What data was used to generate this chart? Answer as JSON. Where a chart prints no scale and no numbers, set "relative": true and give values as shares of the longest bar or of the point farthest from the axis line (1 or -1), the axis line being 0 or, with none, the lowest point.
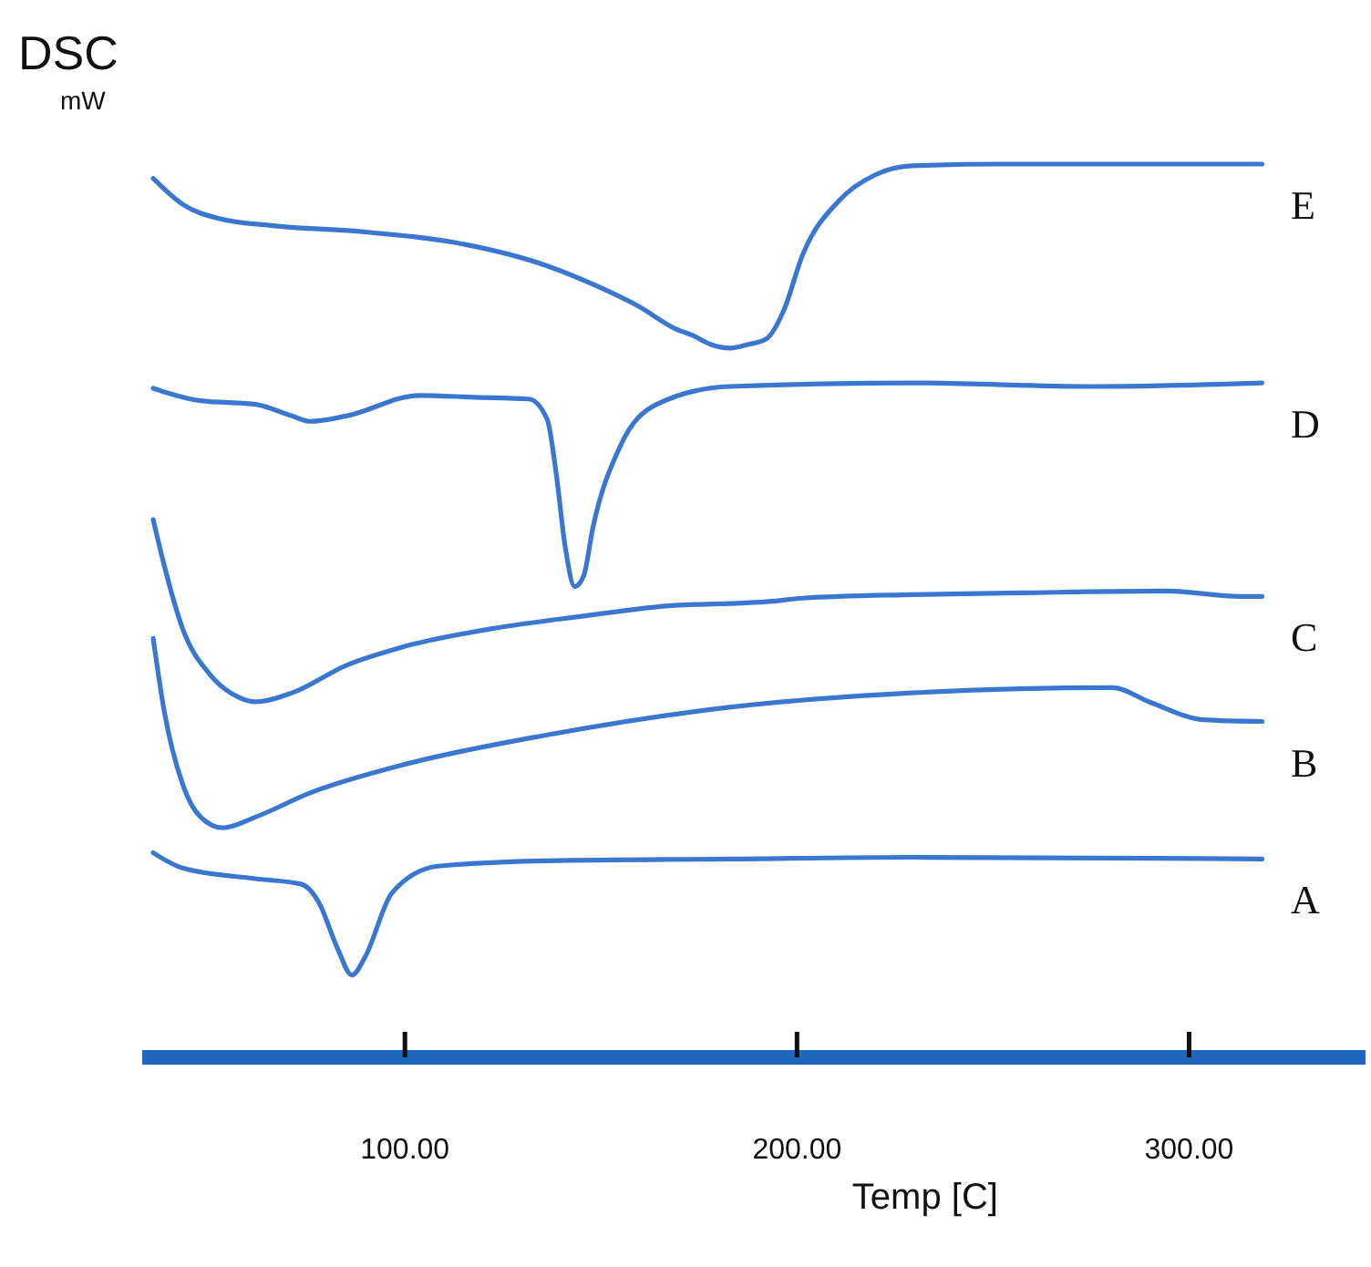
{
  "chart_data": {
    "type": "line",
    "relative": true,
    "title": "DSC",
    "ylabel": "mW",
    "xlabel": "Temp [C]",
    "xlim": [
      33,
      345
    ],
    "xticks": [
      {
        "value": 100,
        "label": "100.00"
      },
      {
        "value": 200,
        "label": "200.00"
      },
      {
        "value": 300,
        "label": "300.00"
      }
    ],
    "marker": "none",
    "line_style": "solid",
    "series": [
      {
        "name": "E",
        "color": "#3a78d0",
        "x": [
          35.8,
          43.3,
          52.6,
          66.5,
          89.8,
          113,
          136.3,
          150.2,
          159.5,
          168.8,
          173.5,
          178.1,
          182.8,
          187.4,
          192.1,
          196.7,
          201.4,
          210.7,
          220,
          229.3,
          252.6,
          275.8,
          318.6
        ],
        "values": [
          0.984,
          0.955,
          0.939,
          0.931,
          0.924,
          0.912,
          0.886,
          0.861,
          0.841,
          0.816,
          0.808,
          0.798,
          0.794,
          0.798,
          0.804,
          0.837,
          0.898,
          0.959,
          0.988,
          0.998,
          1,
          1,
          1
        ]
      },
      {
        "name": "D",
        "color": "#3a78d0",
        "x": [
          35.8,
          38.6,
          47.9,
          61.9,
          71.2,
          75.8,
          85.1,
          103.7,
          117.7,
          131.6,
          136.3,
          138.6,
          140.9,
          143.3,
          145.6,
          147.9,
          154.9,
          164.2,
          182.8,
          229.3,
          275.8,
          318.6
        ],
        "values": [
          0.749,
          0.745,
          0.735,
          0.731,
          0.718,
          0.712,
          0.718,
          0.741,
          0.739,
          0.737,
          0.714,
          0.653,
          0.571,
          0.527,
          0.539,
          0.592,
          0.684,
          0.731,
          0.751,
          0.755,
          0.751,
          0.755
        ]
      },
      {
        "name": "C",
        "color": "#3a78d0",
        "x": [
          35.8,
          38.6,
          43.3,
          50.2,
          57.2,
          61.9,
          71.2,
          85.1,
          99.1,
          122.3,
          145.6,
          168.8,
          182.8,
          192.1,
          201.4,
          229.3,
          257.2,
          294.4,
          313,
          318.6
        ],
        "values": [
          0.602,
          0.551,
          0.48,
          0.429,
          0.404,
          0.398,
          0.408,
          0.439,
          0.459,
          0.48,
          0.494,
          0.506,
          0.508,
          0.51,
          0.514,
          0.518,
          0.52,
          0.522,
          0.516,
          0.516
        ]
      },
      {
        "name": "B",
        "color": "#3a78d0",
        "x": [
          35.8,
          38.6,
          43.3,
          47.9,
          53.5,
          61.9,
          75.8,
          99.1,
          136.3,
          182.8,
          229.3,
          280.5,
          289.8,
          303.7,
          318.6
        ],
        "values": [
          0.469,
          0.388,
          0.306,
          0.269,
          0.257,
          0.269,
          0.296,
          0.327,
          0.361,
          0.392,
          0.408,
          0.414,
          0.398,
          0.378,
          0.376
        ]
      },
      {
        "name": "A",
        "color": "#3a78d0",
        "x": [
          35.8,
          43.3,
          61.9,
          73.5,
          78.1,
          82.8,
          86.5,
          89.8,
          96.7,
          108.4,
          136.3,
          182.8,
          229.3,
          318.6
        ],
        "values": [
          0.229,
          0.212,
          0.2,
          0.194,
          0.173,
          0.122,
          0.092,
          0.112,
          0.184,
          0.214,
          0.22,
          0.222,
          0.224,
          0.222
        ]
      }
    ]
  }
}
